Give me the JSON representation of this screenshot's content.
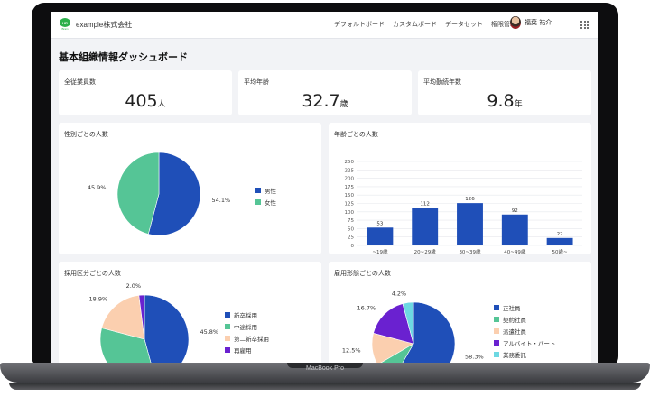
{
  "device_label": "MacBook Pro",
  "header": {
    "logo_text": "HR",
    "logo_subtext": "Brain",
    "company": "example株式会社",
    "nav": [
      "デフォルトボード",
      "カスタムボード",
      "データセット",
      "権限管理"
    ],
    "user_name": "福葉 祐介"
  },
  "page_title": "基本組織情報ダッシュボード",
  "kpis": [
    {
      "label": "全従業員数",
      "value": "405",
      "unit": "人"
    },
    {
      "label": "平均年齢",
      "value": "32.7",
      "unit": "歳"
    },
    {
      "label": "平均勤続年数",
      "value": "9.8",
      "unit": "年"
    }
  ],
  "colors": {
    "blue": "#1f4fb8",
    "green": "#55c596",
    "peach": "#fbcfaf",
    "purple": "#6a21d0",
    "cyan": "#6dd8e2"
  },
  "chart_data": [
    {
      "type": "pie",
      "title": "性別ごとの人数",
      "slices": [
        {
          "name": "男性",
          "value": 54.1,
          "label": "54.1%",
          "color": "#1f4fb8"
        },
        {
          "name": "女性",
          "value": 45.9,
          "label": "45.9%",
          "color": "#55c596"
        }
      ],
      "legend": "right"
    },
    {
      "type": "bar",
      "title": "年齢ごとの人数",
      "categories": [
        "~19歳",
        "20~29歳",
        "30~39歳",
        "40~49歳",
        "50歳~"
      ],
      "values": [
        53,
        112,
        126,
        92,
        22
      ],
      "ylim": [
        0,
        250
      ],
      "yticks": [
        0,
        25,
        50,
        75,
        100,
        125,
        150,
        175,
        200,
        225,
        250
      ],
      "grid": true,
      "color": "#1f4fb8"
    },
    {
      "type": "pie",
      "title": "採用区分ごとの人数",
      "slices": [
        {
          "name": "新卒採用",
          "value": 45.8,
          "label": "45.8%",
          "color": "#1f4fb8"
        },
        {
          "name": "中途採用",
          "value": 33.3,
          "label": "",
          "color": "#55c596"
        },
        {
          "name": "第二新卒採用",
          "value": 18.9,
          "label": "18.9%",
          "color": "#fbcfaf"
        },
        {
          "name": "再雇用",
          "value": 2.0,
          "label": "2.0%",
          "color": "#6a21d0"
        }
      ],
      "legend": "right"
    },
    {
      "type": "pie",
      "title": "雇用形態ごとの人数",
      "slices": [
        {
          "name": "正社員",
          "value": 58.3,
          "label": "58.3%",
          "color": "#1f4fb8"
        },
        {
          "name": "契約社員",
          "value": 8.3,
          "label": "",
          "color": "#55c596"
        },
        {
          "name": "派遣社員",
          "value": 12.5,
          "label": "12.5%",
          "color": "#fbcfaf"
        },
        {
          "name": "アルバイト・パート",
          "value": 16.7,
          "label": "16.7%",
          "color": "#6a21d0"
        },
        {
          "name": "業務委託",
          "value": 4.2,
          "label": "4.2%",
          "color": "#6dd8e2"
        }
      ],
      "legend": "right"
    }
  ]
}
